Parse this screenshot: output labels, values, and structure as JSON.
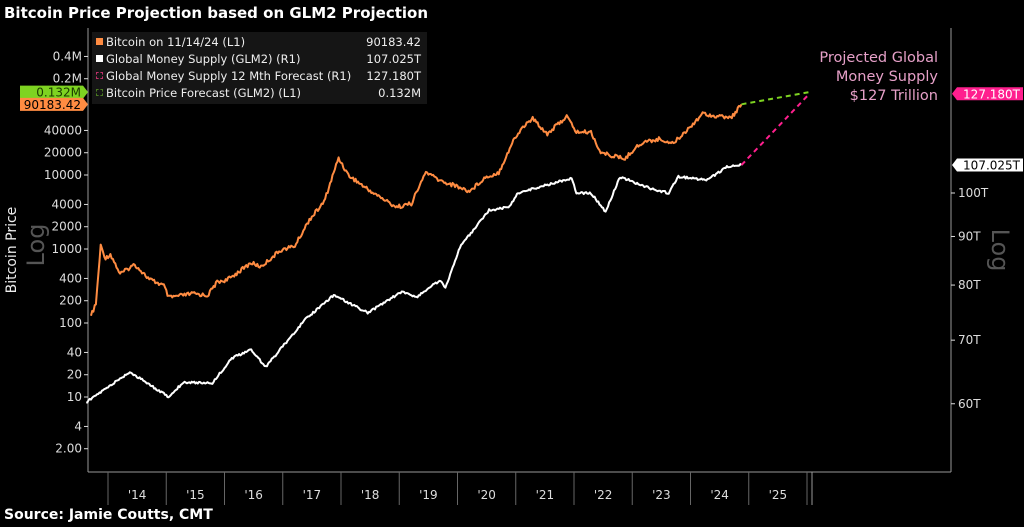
{
  "title": "Bitcoin Price Projection based on GLM2 Projection",
  "source": "Source: Jamie Coutts, CMT",
  "chart_data": {
    "type": "line",
    "title": "Bitcoin Price Projection based on GLM2 Projection",
    "left_axis": {
      "label": "Bitcoin Price",
      "scale_label": "Log",
      "scale": "log",
      "ticks": [
        "0.4M",
        "0.2M",
        "40000",
        "20000",
        "10000",
        "4000",
        "2000",
        "1000",
        "400",
        "200",
        "100",
        "40",
        "20",
        "10",
        "4",
        "2.00"
      ],
      "tick_values": [
        400000,
        200000,
        40000,
        20000,
        10000,
        4000,
        2000,
        1000,
        400,
        200,
        100,
        40,
        20,
        10,
        4,
        2
      ]
    },
    "right_axis": {
      "scale_label": "Log",
      "scale": "log",
      "ticks": [
        "100T",
        "90T",
        "80T",
        "70T",
        "60T"
      ],
      "tick_values": [
        100,
        90,
        80,
        70,
        60
      ]
    },
    "x_ticks": [
      "'14",
      "'15",
      "'16",
      "'17",
      "'18",
      "'19",
      "'20",
      "'21",
      "'22",
      "'23",
      "'24",
      "'25"
    ],
    "grid": false,
    "legend_placement": "top-left",
    "legend": [
      {
        "label": "Bitcoin on 11/14/24 (L1)",
        "value": "90183.42",
        "color": "#ff8c42",
        "style": "solid"
      },
      {
        "label": "Global Money Supply (GLM2) (R1)",
        "value": "107.025T",
        "color": "#ffffff",
        "style": "solid"
      },
      {
        "label": "Global Money Supply 12 Mth Forecast  (R1)",
        "value": "127.180T",
        "color": "#ff1f8e",
        "style": "dashed"
      },
      {
        "label": "Bitcoin Price Forecast (GLM2) (L1)",
        "value": "0.132M",
        "color": "#7ed321",
        "style": "dashed"
      }
    ],
    "tags": {
      "btc_forecast": "0.132M",
      "btc_last": "90183.42",
      "glm2_forecast": "127.180T",
      "glm2_last": "107.025T"
    },
    "annotation": [
      "Projected Global",
      "Money Supply",
      "$127 Trillion"
    ],
    "series": [
      {
        "name": "Bitcoin on 11/14/24 (L1)",
        "axis": "left",
        "color": "#ff8c42",
        "points": [
          [
            "2013-09",
            125
          ],
          [
            "2013-10",
            180
          ],
          [
            "2013-11",
            1100
          ],
          [
            "2013-12",
            750
          ],
          [
            "2014-01",
            850
          ],
          [
            "2014-03",
            460
          ],
          [
            "2014-06",
            620
          ],
          [
            "2014-09",
            390
          ],
          [
            "2014-12",
            320
          ],
          [
            "2015-01",
            220
          ],
          [
            "2015-06",
            250
          ],
          [
            "2015-09",
            235
          ],
          [
            "2015-11",
            360
          ],
          [
            "2016-01",
            380
          ],
          [
            "2016-06",
            650
          ],
          [
            "2016-08",
            575
          ],
          [
            "2016-12",
            960
          ],
          [
            "2017-03",
            1100
          ],
          [
            "2017-06",
            2500
          ],
          [
            "2017-09",
            4300
          ],
          [
            "2017-12",
            17000
          ],
          [
            "2018-02",
            10000
          ],
          [
            "2018-06",
            6400
          ],
          [
            "2018-11",
            4000
          ],
          [
            "2018-12",
            3700
          ],
          [
            "2019-03",
            4100
          ],
          [
            "2019-06",
            11000
          ],
          [
            "2019-09",
            8300
          ],
          [
            "2019-12",
            7200
          ],
          [
            "2020-03",
            6000
          ],
          [
            "2020-06",
            9100
          ],
          [
            "2020-09",
            10800
          ],
          [
            "2020-12",
            29000
          ],
          [
            "2021-02",
            45000
          ],
          [
            "2021-04",
            58000
          ],
          [
            "2021-07",
            36000
          ],
          [
            "2021-11",
            62000
          ],
          [
            "2022-01",
            38000
          ],
          [
            "2022-04",
            38000
          ],
          [
            "2022-06",
            20000
          ],
          [
            "2022-11",
            16500
          ],
          [
            "2023-01",
            23000
          ],
          [
            "2023-03",
            28000
          ],
          [
            "2023-06",
            30500
          ],
          [
            "2023-09",
            27000
          ],
          [
            "2023-12",
            42000
          ],
          [
            "2024-03",
            68000
          ],
          [
            "2024-06",
            62000
          ],
          [
            "2024-09",
            60000
          ],
          [
            "2024-11",
            90183.42
          ]
        ]
      },
      {
        "name": "Global Money Supply (GLM2) (R1)",
        "axis": "right",
        "color": "#ffffff",
        "points": [
          [
            "2013-08",
            60.2
          ],
          [
            "2014-05",
            64.8
          ],
          [
            "2015-01",
            61.0
          ],
          [
            "2015-04",
            63.2
          ],
          [
            "2015-10",
            63.1
          ],
          [
            "2016-02",
            67.0
          ],
          [
            "2016-06",
            68.4
          ],
          [
            "2016-09",
            65.6
          ],
          [
            "2017-05",
            73.5
          ],
          [
            "2017-11",
            78.1
          ],
          [
            "2018-06",
            74.8
          ],
          [
            "2019-01",
            78.7
          ],
          [
            "2019-04",
            77.7
          ],
          [
            "2019-09",
            81.0
          ],
          [
            "2019-10",
            79.4
          ],
          [
            "2020-01",
            87.7
          ],
          [
            "2020-07",
            95.9
          ],
          [
            "2020-11",
            96.6
          ],
          [
            "2021-01",
            100.0
          ],
          [
            "2021-12",
            103.7
          ],
          [
            "2022-01",
            100.0
          ],
          [
            "2022-04",
            100.0
          ],
          [
            "2022-07",
            95.5
          ],
          [
            "2022-10",
            104.0
          ],
          [
            "2023-04",
            101.2
          ],
          [
            "2023-08",
            100.0
          ],
          [
            "2023-10",
            104.0
          ],
          [
            "2024-04",
            103.2
          ],
          [
            "2024-08",
            106.5
          ],
          [
            "2024-11",
            107.025
          ]
        ]
      },
      {
        "name": "Global Money Supply 12 Mth Forecast  (R1)",
        "axis": "right",
        "color": "#ff1f8e",
        "dashed": true,
        "points": [
          [
            "2024-11",
            107.025
          ],
          [
            "2026-01",
            127.18
          ]
        ]
      },
      {
        "name": "Bitcoin Price Forecast (GLM2) (L1)",
        "axis": "left",
        "color": "#7ed321",
        "dashed": true,
        "points": [
          [
            "2024-11",
            90183.42
          ],
          [
            "2026-01",
            132000
          ]
        ]
      }
    ]
  }
}
